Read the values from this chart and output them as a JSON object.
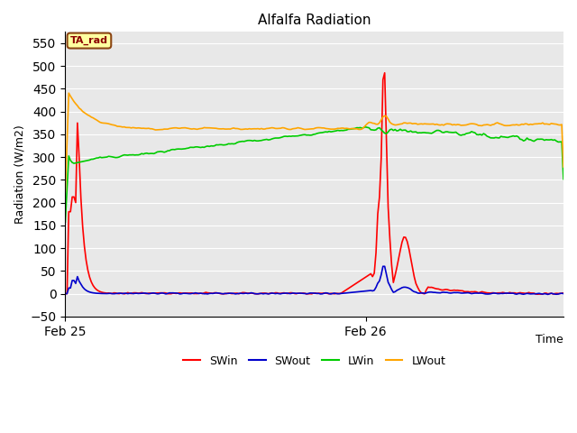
{
  "title": "Alfalfa Radiation",
  "xlabel": "Time",
  "ylabel": "Radiation (W/m2)",
  "ylim": [
    -50,
    575
  ],
  "yticks": [
    -50,
    0,
    50,
    100,
    150,
    200,
    250,
    300,
    350,
    400,
    450,
    500,
    550
  ],
  "annotation_text": "TA_rad",
  "annotation_color": "#8B0000",
  "annotation_bg": "#FFFFA0",
  "annotation_border": "#8B4513",
  "legend_labels": [
    "SWin",
    "SWout",
    "LWin",
    "LWout"
  ],
  "line_colors": {
    "SWin": "#FF0000",
    "SWout": "#0000CC",
    "LWin": "#00CC00",
    "LWout": "#FFA500"
  },
  "bg_color": "#E8E8E8",
  "xtick_positions": [
    0,
    173
  ],
  "xtick_labels": [
    "Feb 25",
    "Feb 26"
  ],
  "n_points": 288,
  "feb26_index": 173
}
